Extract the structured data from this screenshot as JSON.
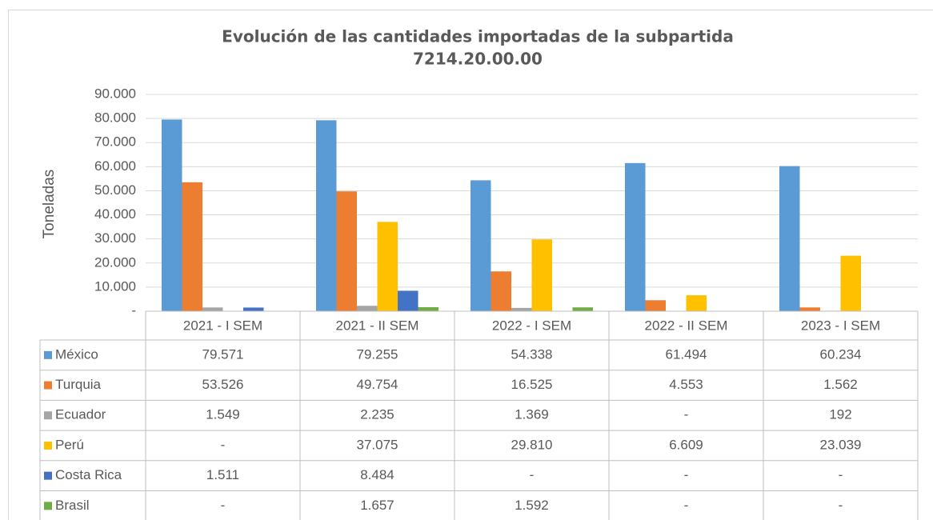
{
  "chart_data": {
    "type": "bar",
    "title": "Evolución de las cantidades importadas de la subpartida",
    "subtitle": "7214.20.00.00",
    "y_label": "Toneladas",
    "categories": [
      "2021 - I SEM",
      "2021 - II SEM",
      "2022 - I SEM",
      "2022 - II SEM",
      "2023 - I SEM"
    ],
    "series": [
      {
        "name": "México",
        "color": "#5b9bd5",
        "values": [
          79571,
          79255,
          54338,
          61494,
          60234
        ],
        "value_labels": [
          "79.571",
          "79.255",
          "54.338",
          "61.494",
          "60.234"
        ]
      },
      {
        "name": "Turquia",
        "color": "#ed7d31",
        "values": [
          53526,
          49754,
          16525,
          4553,
          1562
        ],
        "value_labels": [
          "53.526",
          "49.754",
          "16.525",
          "4.553",
          "1.562"
        ]
      },
      {
        "name": "Ecuador",
        "color": "#a5a5a5",
        "values": [
          1549,
          2235,
          1369,
          null,
          192
        ],
        "value_labels": [
          "1.549",
          "2.235",
          "1.369",
          "-",
          "192"
        ]
      },
      {
        "name": "Perú",
        "color": "#ffc000",
        "values": [
          null,
          37075,
          29810,
          6609,
          23039
        ],
        "value_labels": [
          "-",
          "37.075",
          "29.810",
          "6.609",
          "23.039"
        ]
      },
      {
        "name": "Costa Rica",
        "color": "#4472c4",
        "values": [
          1511,
          8484,
          null,
          null,
          null
        ],
        "value_labels": [
          "1.511",
          "8.484",
          "-",
          "-",
          "-"
        ]
      },
      {
        "name": "Brasil",
        "color": "#70ad47",
        "values": [
          null,
          1657,
          1592,
          null,
          null
        ],
        "value_labels": [
          "-",
          "1.657",
          "1.592",
          "-",
          "-"
        ]
      }
    ],
    "ylim": [
      0,
      90000
    ],
    "yticks": [
      {
        "value": 0,
        "label": "-"
      },
      {
        "value": 10000,
        "label": "10.000"
      },
      {
        "value": 20000,
        "label": "20.000"
      },
      {
        "value": 30000,
        "label": "30.000"
      },
      {
        "value": 40000,
        "label": "40.000"
      },
      {
        "value": 50000,
        "label": "50.000"
      },
      {
        "value": 60000,
        "label": "60.000"
      },
      {
        "value": 70000,
        "label": "70.000"
      },
      {
        "value": 80000,
        "label": "80.000"
      },
      {
        "value": 90000,
        "label": "90.000"
      }
    ],
    "grid": true
  }
}
